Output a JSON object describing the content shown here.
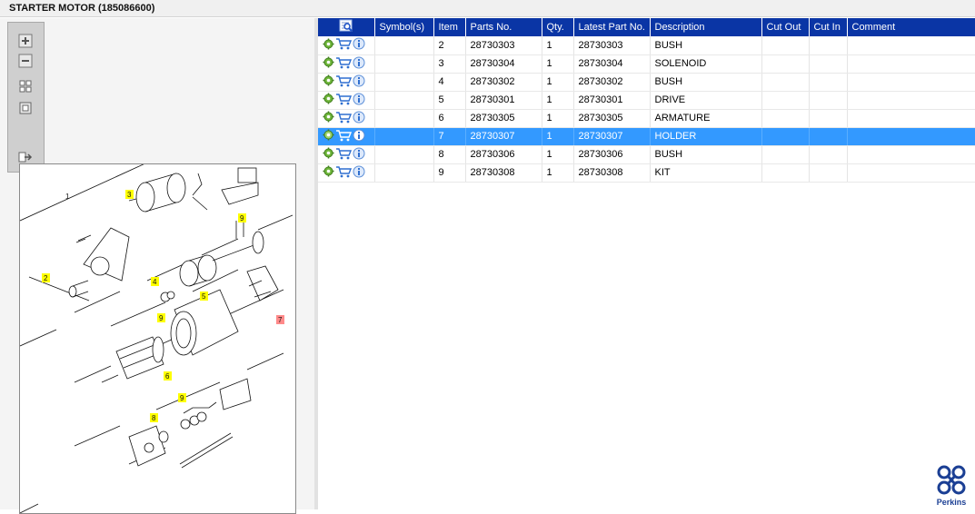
{
  "window": {
    "title": "STARTER MOTOR (185086600)"
  },
  "toolbar": {
    "buttons": [
      {
        "icon": "zoom-in-icon"
      },
      {
        "icon": "zoom-out-icon"
      },
      {
        "icon": "fit-all-icon"
      },
      {
        "icon": "actual-size-icon"
      },
      {
        "icon": "export-icon"
      }
    ]
  },
  "diagram": {
    "callouts": [
      {
        "label": "1",
        "highlight": "none"
      },
      {
        "label": "2",
        "highlight": "#ffff00"
      },
      {
        "label": "3",
        "highlight": "#ffff00"
      },
      {
        "label": "4",
        "highlight": "#ffff00"
      },
      {
        "label": "5",
        "highlight": "#ffff00"
      },
      {
        "label": "6",
        "highlight": "#ffff00"
      },
      {
        "label": "7",
        "highlight": "#ff8a8a"
      },
      {
        "label": "8",
        "highlight": "#ffff00"
      },
      {
        "label": "9",
        "highlight": "#ffff00"
      }
    ]
  },
  "grid": {
    "header_icon": "search-list-icon",
    "columns": [
      "Symbol(s)",
      "Item",
      "Parts No.",
      "Qty.",
      "Latest Part No.",
      "Description",
      "Cut Out",
      "Cut In",
      "Comment"
    ],
    "selected_row_index": 5,
    "rows": [
      {
        "symbols": "",
        "item": "2",
        "part_no": "28730303",
        "qty": "1",
        "latest_part_no": "28730303",
        "description": "BUSH",
        "cut_out": "",
        "cut_in": "",
        "comment": ""
      },
      {
        "symbols": "",
        "item": "3",
        "part_no": "28730304",
        "qty": "1",
        "latest_part_no": "28730304",
        "description": "SOLENOID",
        "cut_out": "",
        "cut_in": "",
        "comment": ""
      },
      {
        "symbols": "",
        "item": "4",
        "part_no": "28730302",
        "qty": "1",
        "latest_part_no": "28730302",
        "description": "BUSH",
        "cut_out": "",
        "cut_in": "",
        "comment": ""
      },
      {
        "symbols": "",
        "item": "5",
        "part_no": "28730301",
        "qty": "1",
        "latest_part_no": "28730301",
        "description": "DRIVE",
        "cut_out": "",
        "cut_in": "",
        "comment": ""
      },
      {
        "symbols": "",
        "item": "6",
        "part_no": "28730305",
        "qty": "1",
        "latest_part_no": "28730305",
        "description": "ARMATURE",
        "cut_out": "",
        "cut_in": "",
        "comment": ""
      },
      {
        "symbols": "",
        "item": "7",
        "part_no": "28730307",
        "qty": "1",
        "latest_part_no": "28730307",
        "description": "HOLDER",
        "cut_out": "",
        "cut_in": "",
        "comment": ""
      },
      {
        "symbols": "",
        "item": "8",
        "part_no": "28730306",
        "qty": "1",
        "latest_part_no": "28730306",
        "description": "BUSH",
        "cut_out": "",
        "cut_in": "",
        "comment": ""
      },
      {
        "symbols": "",
        "item": "9",
        "part_no": "28730308",
        "qty": "1",
        "latest_part_no": "28730308",
        "description": "KIT",
        "cut_out": "",
        "cut_in": "",
        "comment": ""
      }
    ],
    "row_icons": [
      "settings-gear-icon",
      "add-to-cart-icon",
      "info-icon"
    ]
  },
  "brand": {
    "name": "Perkins",
    "color": "#1b3f94"
  },
  "colors": {
    "header_bg": "#0a35a5",
    "selection_bg": "#3399ff",
    "callout_yellow": "#ffff00",
    "callout_red": "#ff8a8a"
  }
}
